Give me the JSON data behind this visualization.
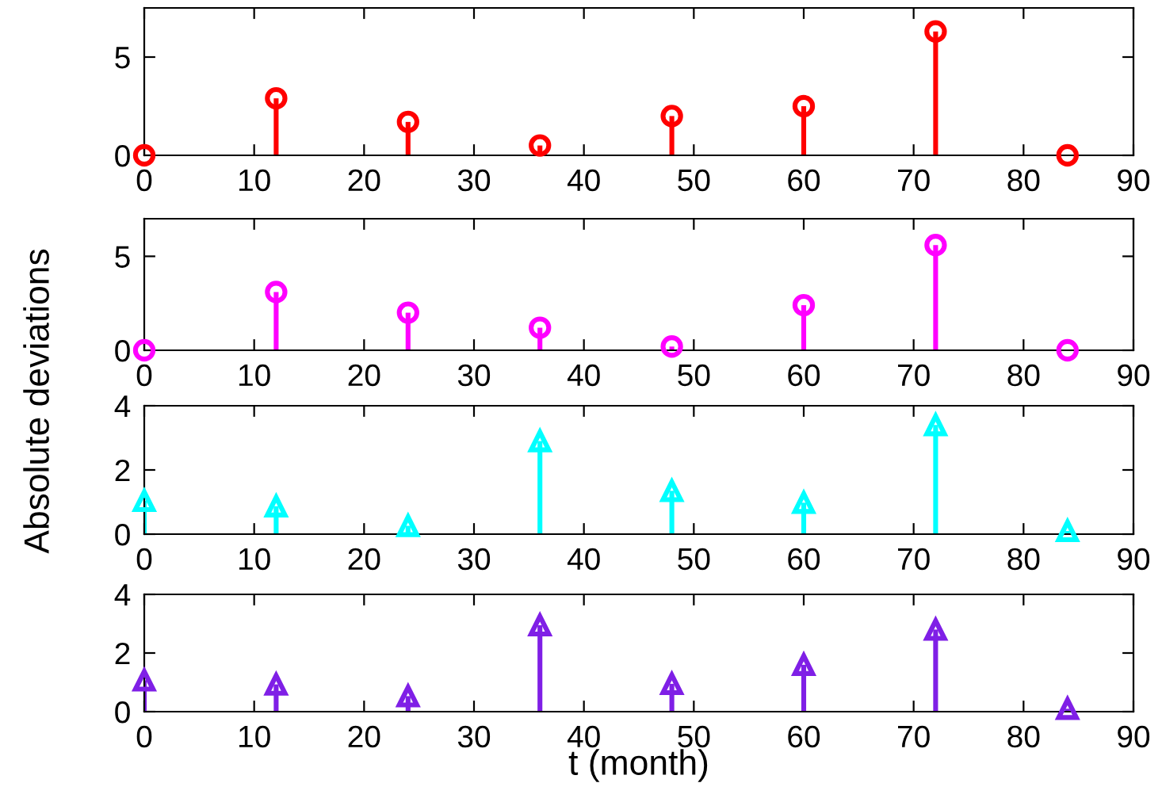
{
  "chart_data": [
    {
      "type": "lollipop",
      "x": [
        0,
        12,
        24,
        36,
        48,
        60,
        72,
        84
      ],
      "series": [
        {
          "color": "#ff0000",
          "values": [
            0,
            2.9,
            1.7,
            0.5,
            2,
            2.5,
            6.3,
            0
          ]
        }
      ],
      "marker": "circle",
      "xlim": [
        0,
        90
      ],
      "xticks": [
        0,
        10,
        20,
        30,
        40,
        50,
        60,
        70,
        80,
        90
      ],
      "ylim": [
        0,
        7.5
      ],
      "yticks": [
        0,
        5
      ]
    },
    {
      "type": "lollipop",
      "x": [
        0,
        12,
        24,
        36,
        48,
        60,
        72,
        84
      ],
      "series": [
        {
          "color": "#ff00ff",
          "values": [
            0,
            3.1,
            2,
            1.2,
            0.2,
            2.4,
            5.6,
            0
          ]
        }
      ],
      "marker": "circle",
      "xlim": [
        0,
        90
      ],
      "xticks": [
        0,
        10,
        20,
        30,
        40,
        50,
        60,
        70,
        80,
        90
      ],
      "ylim": [
        0,
        7
      ],
      "yticks": [
        0,
        5
      ],
      "ylabel": "Absolute deviations"
    },
    {
      "type": "lollipop",
      "x": [
        0,
        12,
        24,
        36,
        48,
        60,
        72,
        84
      ],
      "series": [
        {
          "color": "#00ffff",
          "values": [
            1.04,
            0.87,
            0.26,
            2.9,
            1.35,
            0.98,
            3.4,
            0.1
          ]
        }
      ],
      "marker": "triangle",
      "xlim": [
        0,
        90
      ],
      "xticks": [
        0,
        10,
        20,
        30,
        40,
        50,
        60,
        70,
        80,
        90
      ],
      "ylim": [
        0,
        4
      ],
      "yticks": [
        0,
        2,
        4
      ]
    },
    {
      "type": "lollipop",
      "x": [
        0,
        12,
        24,
        36,
        48,
        60,
        72,
        84
      ],
      "series": [
        {
          "color": "#7f1fe6",
          "values": [
            1.07,
            0.93,
            0.53,
            2.95,
            0.95,
            1.6,
            2.8,
            0.1
          ]
        }
      ],
      "marker": "triangle",
      "xlim": [
        0,
        90
      ],
      "xticks": [
        0,
        10,
        20,
        30,
        40,
        50,
        60,
        70,
        80,
        90
      ],
      "ylim": [
        0,
        4
      ],
      "yticks": [
        0,
        2,
        4
      ],
      "xlabel": "t (month)"
    }
  ]
}
